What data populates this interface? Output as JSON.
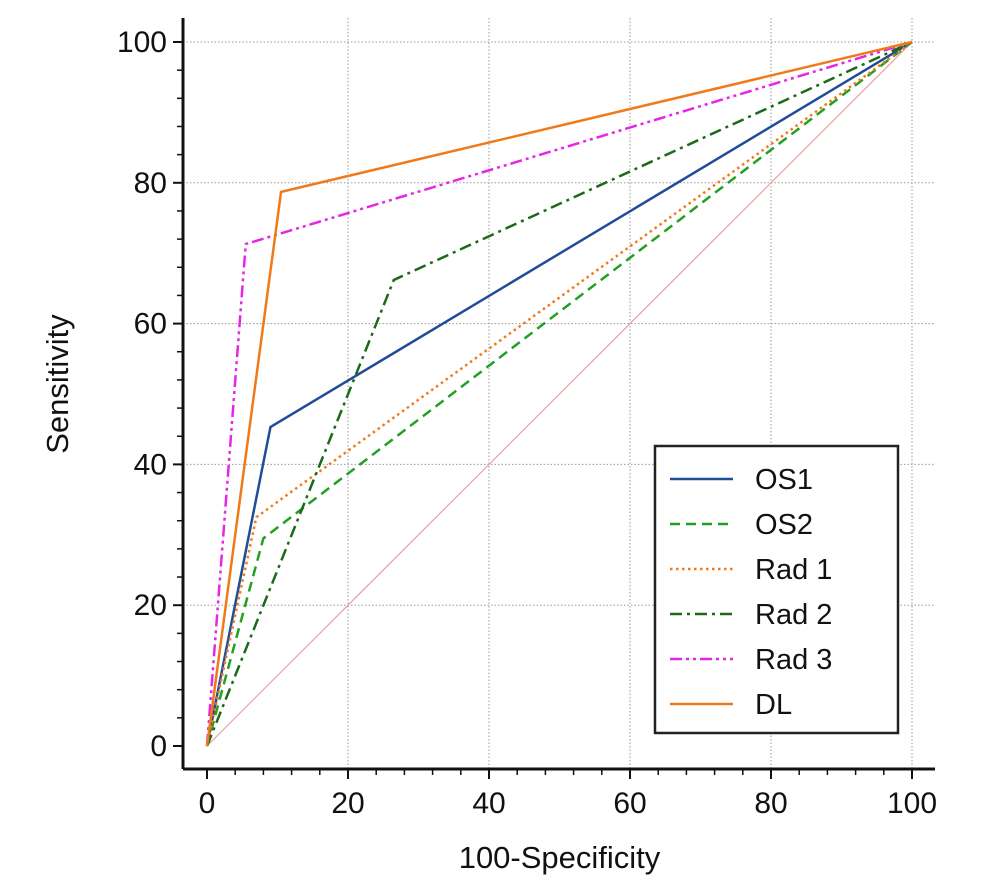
{
  "chart_data": {
    "type": "line",
    "title": "",
    "xlabel": "100-Specificity",
    "ylabel": "Sensitivity",
    "xlim": [
      0,
      100
    ],
    "ylim": [
      0,
      100
    ],
    "xticks": [
      0,
      20,
      40,
      60,
      80,
      100
    ],
    "yticks": [
      0,
      20,
      40,
      60,
      80,
      100
    ],
    "grid": true,
    "legend_position": "bottom-right",
    "reference_line": {
      "x": [
        0,
        100
      ],
      "y": [
        0,
        100
      ],
      "color": "#e8a0a0"
    },
    "series": [
      {
        "name": "OS1",
        "color": "#1f4e96",
        "dash": "solid",
        "x": [
          0,
          9,
          100
        ],
        "y": [
          0,
          45.3,
          100
        ]
      },
      {
        "name": "OS2",
        "color": "#22a022",
        "dash": "dashed",
        "x": [
          0,
          8,
          100
        ],
        "y": [
          0,
          29.5,
          100
        ]
      },
      {
        "name": "Rad 1",
        "color": "#f07a1a",
        "dash": "dotted",
        "x": [
          0,
          7,
          100
        ],
        "y": [
          0,
          32.5,
          100
        ]
      },
      {
        "name": "Rad 2",
        "color": "#1a6a1a",
        "dash": "dashdot",
        "x": [
          0,
          26.5,
          100
        ],
        "y": [
          0,
          66.2,
          100
        ]
      },
      {
        "name": "Rad 3",
        "color": "#e626e6",
        "dash": "dashdotdot",
        "x": [
          0,
          5.5,
          100
        ],
        "y": [
          0,
          71.3,
          100
        ]
      },
      {
        "name": "DL",
        "color": "#f07a1a",
        "dash": "solid",
        "x": [
          0,
          10.5,
          100
        ],
        "y": [
          0,
          78.7,
          100
        ]
      }
    ]
  }
}
